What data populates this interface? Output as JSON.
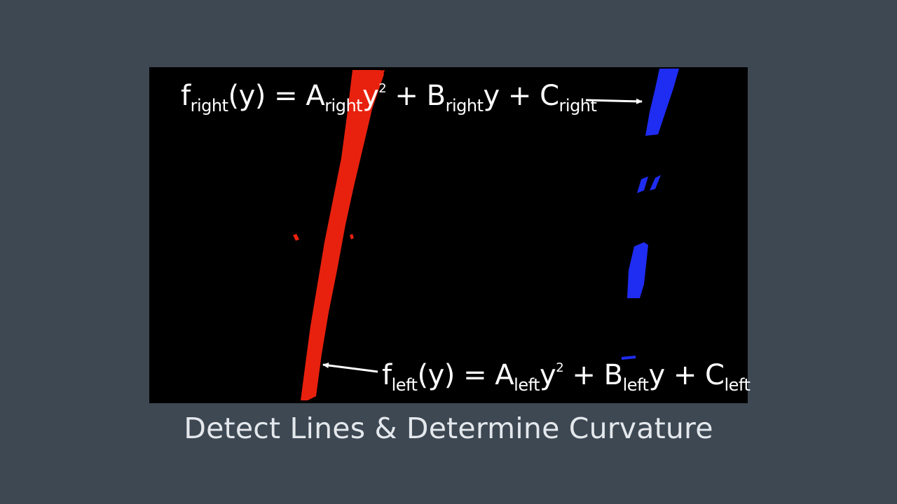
{
  "formulas": {
    "right": {
      "f": "f",
      "f_sub": "right",
      "arg": "(y) = A",
      "a_sub": "right",
      "y": "y",
      "exp": "2",
      "mid": " + B",
      "b_sub": "right",
      "tail": "y + C",
      "c_sub": "right"
    },
    "left": {
      "f": "f",
      "f_sub": "left",
      "arg": "(y) = A",
      "a_sub": "left",
      "y": "y",
      "exp": "2",
      "mid": " + B",
      "b_sub": "left",
      "tail": "y + C",
      "c_sub": "left"
    }
  },
  "caption": "Detect Lines & Determine Curvature",
  "colors": {
    "background": "#3d4853",
    "image_background": "#000000",
    "left_lane": "#e8210e",
    "right_lane": "#1f2cf2",
    "text": "#ffffff",
    "caption": "#e4e8ec"
  }
}
